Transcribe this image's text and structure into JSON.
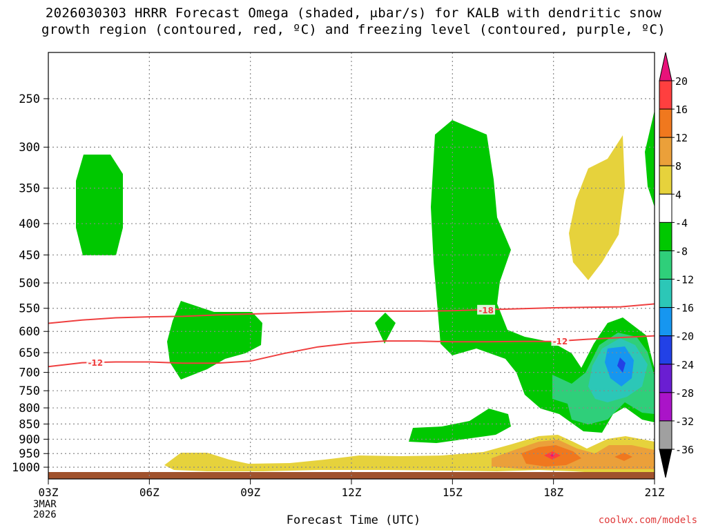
{
  "chart_data": {
    "type": "contour",
    "title_line1": "2026030303 HRRR Forecast Omega (shaded, μbar/s) for KALB with dendritic snow",
    "title_line2": "growth region (contoured, red, ºC) and freezing level (contoured, purple, ºC)",
    "xlabel": "Forecast Time (UTC)",
    "date_line1": "3MAR",
    "date_line2": "2026",
    "x_ticks": [
      "03Z",
      "06Z",
      "09Z",
      "12Z",
      "15Z",
      "18Z",
      "21Z"
    ],
    "x_hours": [
      3,
      6,
      9,
      12,
      15,
      18,
      21
    ],
    "y_ticks": [
      250,
      300,
      350,
      400,
      450,
      500,
      550,
      600,
      650,
      700,
      750,
      800,
      850,
      900,
      950,
      1000
    ],
    "y_scale": "log pressure (hPa), inverted",
    "grid": true,
    "colorbar": {
      "labels": [
        "20",
        "16",
        "12",
        "8",
        "4",
        "-4",
        "-8",
        "-12",
        "-16",
        "-20",
        "-24",
        "-28",
        "-32",
        "-36"
      ],
      "colors": [
        "#ff3f3f",
        "#f0781e",
        "#eba03a",
        "#e6d23c",
        "#ffffff",
        "#00c800",
        "#2fcf7a",
        "#2cc7b7",
        "#1696f0",
        "#2241e6",
        "#6a1ed2",
        "#aa14c8",
        "#a0a0a0"
      ],
      "top_arrow_color": "#e8127a",
      "bottom_arrow_color": "#000000"
    },
    "contours": [
      {
        "label": "-18",
        "color": "#ef3f3f",
        "points": [
          [
            3,
            582
          ],
          [
            4,
            575
          ],
          [
            5,
            570
          ],
          [
            6,
            568
          ],
          [
            7,
            567
          ],
          [
            8,
            564
          ],
          [
            9,
            562
          ],
          [
            10,
            560
          ],
          [
            11,
            558
          ],
          [
            12,
            556
          ],
          [
            13,
            556
          ],
          [
            14,
            556
          ],
          [
            15,
            555
          ],
          [
            16,
            553
          ],
          [
            17,
            551
          ],
          [
            18,
            549
          ],
          [
            19,
            548
          ],
          [
            20,
            547
          ],
          [
            21,
            541
          ]
        ]
      },
      {
        "label": "-12",
        "color": "#ef3f3f",
        "points": [
          [
            3,
            685
          ],
          [
            4,
            675
          ],
          [
            5,
            673
          ],
          [
            6,
            673
          ],
          [
            7,
            676
          ],
          [
            8,
            676
          ],
          [
            9,
            671
          ],
          [
            10,
            652
          ],
          [
            11,
            636
          ],
          [
            12,
            627
          ],
          [
            13,
            622
          ],
          [
            14,
            622
          ],
          [
            15,
            624
          ],
          [
            16,
            624
          ],
          [
            17,
            623
          ],
          [
            18,
            623
          ],
          [
            19,
            618
          ],
          [
            20,
            614
          ],
          [
            21,
            610
          ]
        ]
      }
    ],
    "shaded_regions": [
      {
        "omega": "-4 to -8",
        "hours": "3.8-5.2",
        "pressure_hPa": "305-455"
      },
      {
        "omega": "-4 to -8",
        "hours": "6.5-9.3",
        "pressure_hPa": "535-720"
      },
      {
        "omega": "-4 to -8",
        "hours": "14.5-20",
        "pressure_hPa": "275-900"
      },
      {
        "omega": "-4 to -8",
        "hours": "20.8-21",
        "pressure_hPa": "265-360"
      },
      {
        "omega": "-8 to -20",
        "hours": "18.5-21",
        "pressure_hPa": "620-860"
      },
      {
        "omega": "4 to 8",
        "hours": "18.4-20",
        "pressure_hPa": "285-505"
      },
      {
        "omega": "4 to 20",
        "hours": "7-21",
        "pressure_hPa": "900-1000"
      }
    ]
  },
  "credit": "coolwx.com/models"
}
